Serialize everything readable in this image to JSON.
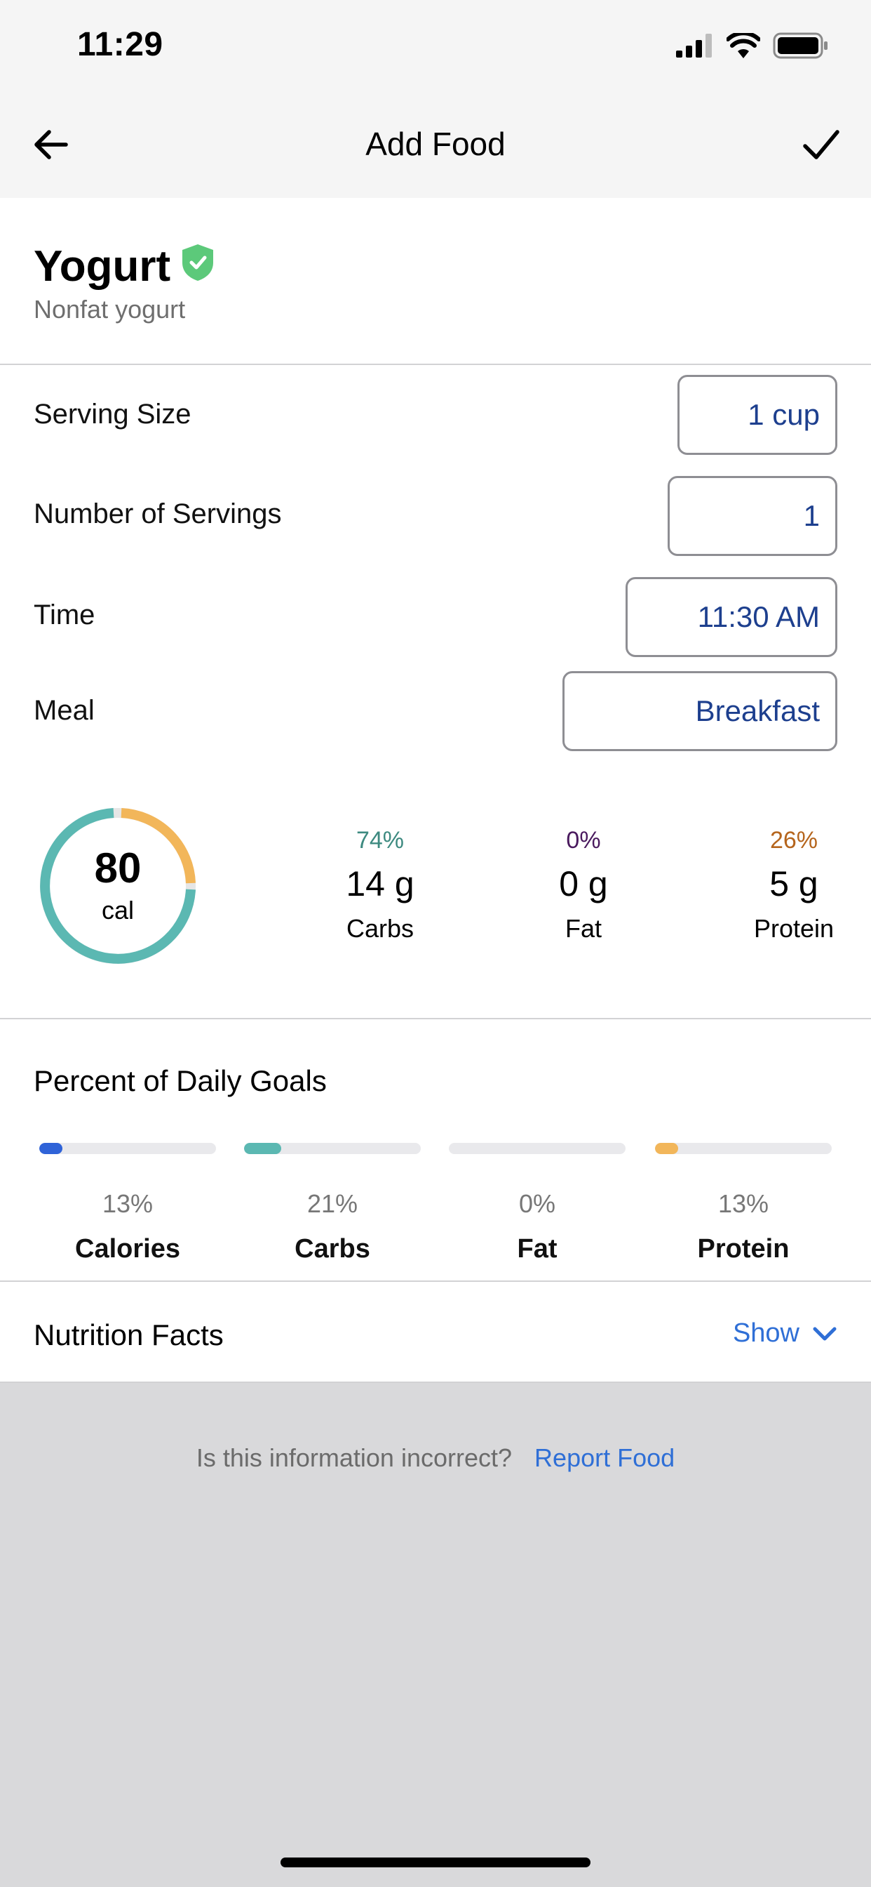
{
  "status_bar": {
    "time": "11:29"
  },
  "header": {
    "title": "Add Food"
  },
  "food": {
    "name": "Yogurt",
    "description": "Nonfat yogurt"
  },
  "fields": {
    "serving_size": {
      "label": "Serving Size",
      "value": "1 cup"
    },
    "servings": {
      "label": "Number of Servings",
      "value": "1"
    },
    "time": {
      "label": "Time",
      "value": "11:30 AM"
    },
    "meal": {
      "label": "Meal",
      "value": "Breakfast"
    }
  },
  "calories": {
    "value": "80",
    "unit": "cal"
  },
  "macros": [
    {
      "percent": "74%",
      "amount": "14 g",
      "name": "Carbs",
      "color": "#3d8a80"
    },
    {
      "percent": "0%",
      "amount": "0 g",
      "name": "Fat",
      "color": "#4a1a5e"
    },
    {
      "percent": "26%",
      "amount": "5 g",
      "name": "Protein",
      "color": "#b5651d"
    }
  ],
  "ring_colors": {
    "carbs": "#5bb8b2",
    "protein": "#f2b65a"
  },
  "daily_goals": {
    "title": "Percent of Daily Goals",
    "items": [
      {
        "percent": "13%",
        "name": "Calories",
        "fraction": 0.13,
        "color": "#2f63d8"
      },
      {
        "percent": "21%",
        "name": "Carbs",
        "fraction": 0.21,
        "color": "#5bb8b2"
      },
      {
        "percent": "0%",
        "name": "Fat",
        "fraction": 0.0,
        "color": "#7b4fc4"
      },
      {
        "percent": "13%",
        "name": "Protein",
        "fraction": 0.13,
        "color": "#f2b65a"
      }
    ]
  },
  "nutrition_facts": {
    "label": "Nutrition Facts",
    "toggle": "Show"
  },
  "report": {
    "question": "Is this information incorrect?",
    "link": "Report Food"
  }
}
